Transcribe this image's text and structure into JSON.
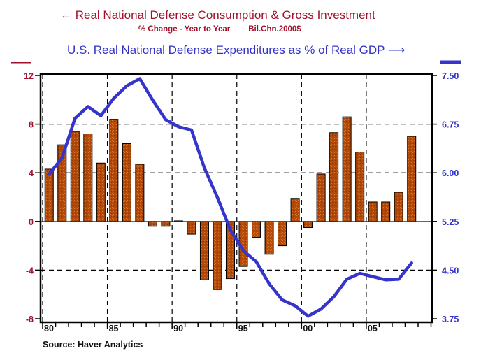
{
  "chart_data": {
    "type": "bar+line",
    "title_left": "Real National Defense Consumption & Gross Investment",
    "title_left_arrow": "←",
    "subtitle_left": [
      "% Change - Year to Year",
      "Bil.Chn.2000$"
    ],
    "title_right": "U.S. Real National Defense Expenditures as % of Real GDP",
    "title_right_arrow": "⟶",
    "source": "Source: Haver Analytics",
    "x": [
      1980,
      1981,
      1982,
      1983,
      1984,
      1985,
      1986,
      1987,
      1988,
      1989,
      1990,
      1991,
      1992,
      1993,
      1994,
      1995,
      1996,
      1997,
      1998,
      1999,
      2000,
      2001,
      2002,
      2003,
      2004,
      2005,
      2006,
      2007,
      2008
    ],
    "xlim": [
      1980,
      2010
    ],
    "xtick_labels": [
      {
        "year": 1980,
        "label": "80"
      },
      {
        "year": 1985,
        "label": "85"
      },
      {
        "year": 1990,
        "label": "90"
      },
      {
        "year": 1995,
        "label": "95"
      },
      {
        "year": 2000,
        "label": "00"
      },
      {
        "year": 2005,
        "label": "05"
      }
    ],
    "series": [
      {
        "name": "Real National Defense Consumption & Gross Investment (% Change - Year to Year)",
        "type": "bar",
        "axis": "left",
        "color": "#b34a0a",
        "values": [
          4.3,
          6.3,
          7.4,
          7.2,
          4.8,
          8.4,
          6.4,
          4.7,
          -0.4,
          -0.4,
          0.05,
          -1.05,
          -4.8,
          -5.6,
          -4.7,
          -3.7,
          -1.3,
          -2.7,
          -2.0,
          1.9,
          -0.5,
          3.9,
          7.3,
          8.6,
          5.7,
          1.6,
          1.6,
          2.4,
          7.0
        ]
      },
      {
        "name": "U.S. Real National Defense Expenditures as % of Real GDP",
        "type": "line",
        "axis": "right",
        "color": "#3535cc",
        "values": [
          5.98,
          6.23,
          6.84,
          7.02,
          6.88,
          7.15,
          7.34,
          7.45,
          7.12,
          6.82,
          6.71,
          6.66,
          6.07,
          5.62,
          5.12,
          4.8,
          4.63,
          4.29,
          4.04,
          3.95,
          3.79,
          3.9,
          4.09,
          4.36,
          4.45,
          4.4,
          4.35,
          4.36,
          4.61
        ]
      }
    ],
    "left_axis": {
      "ylim": [
        -8,
        12
      ],
      "ticks": [
        -8,
        -4,
        0,
        4,
        8,
        12
      ],
      "tick_labels": [
        "-8",
        "-4",
        "0",
        "4",
        "8",
        "12"
      ],
      "color": "#a0102a"
    },
    "right_axis": {
      "ylim": [
        3.75,
        7.5
      ],
      "ticks": [
        3.75,
        4.5,
        5.25,
        6.0,
        6.75,
        7.5
      ],
      "tick_labels": [
        "3.75",
        "4.50",
        "5.25",
        "6.00",
        "6.75",
        "7.50"
      ],
      "color": "#3333cc"
    },
    "grid": true,
    "zero_line_color": "#8b0a1a"
  }
}
